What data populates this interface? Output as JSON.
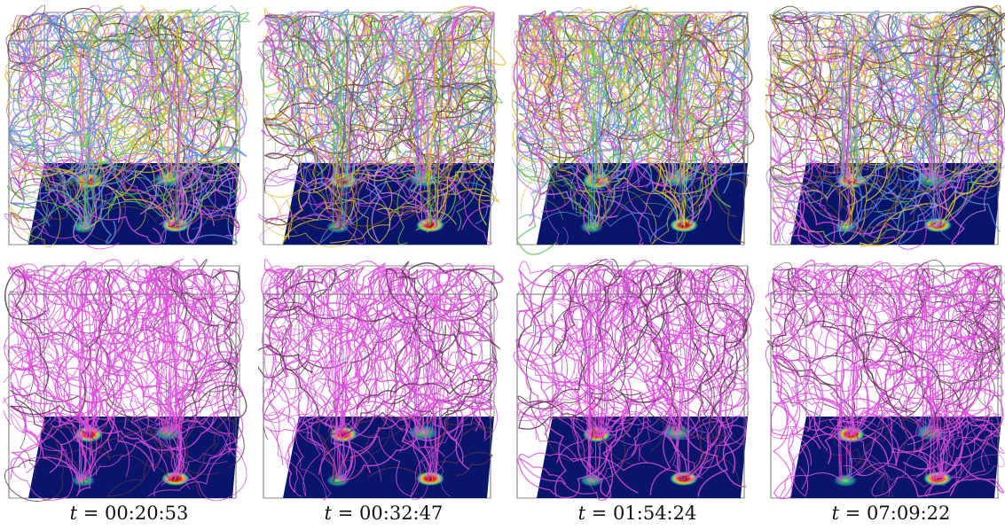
{
  "figure": {
    "columns": [
      {
        "time": "00:20:53",
        "variant": 0
      },
      {
        "time": "00:32:47",
        "variant": 1
      },
      {
        "time": "01:54:24",
        "variant": 2
      },
      {
        "time": "07:09:22",
        "variant": 3
      }
    ],
    "caption_var": "t",
    "caption_eq": "=",
    "colors": {
      "floor": "#08156b",
      "box_edge": "#6e6e6e",
      "pathline_primary": "#d94fd9",
      "pathline_dark": "#5a3050",
      "top_row_palette": [
        "#d94fd9",
        "#e0c13a",
        "#5a8fe0",
        "#5ec45a",
        "#6a4a3a",
        "#c58ae0"
      ],
      "heat_spot_hot": "#b21010",
      "heat_spot_warm": "#2fa84a"
    },
    "rows": [
      "multi-colored pathlines",
      "single-colored pathlines"
    ]
  }
}
